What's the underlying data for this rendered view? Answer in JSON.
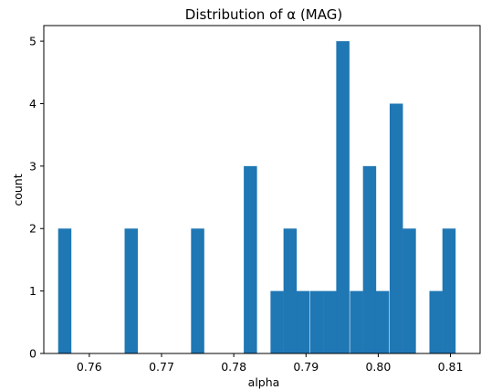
{
  "chart_data": {
    "type": "bar",
    "title": "Distribution of α (MAG)",
    "xlabel": "alpha",
    "ylabel": "count",
    "xlim": [
      0.7537,
      0.8141
    ],
    "ylim": [
      0,
      5.25
    ],
    "xticks": [
      "0.76",
      "0.77",
      "0.78",
      "0.79",
      "0.80",
      "0.81"
    ],
    "yticks": [
      "0",
      "1",
      "2",
      "3",
      "4",
      "5"
    ],
    "bin_width": 0.00183,
    "bins": [
      {
        "x": 0.7566,
        "count": 2
      },
      {
        "x": 0.7658,
        "count": 2
      },
      {
        "x": 0.775,
        "count": 2
      },
      {
        "x": 0.7823,
        "count": 3
      },
      {
        "x": 0.786,
        "count": 1
      },
      {
        "x": 0.7878,
        "count": 2
      },
      {
        "x": 0.7896,
        "count": 1
      },
      {
        "x": 0.7915,
        "count": 1
      },
      {
        "x": 0.7933,
        "count": 1
      },
      {
        "x": 0.7951,
        "count": 5
      },
      {
        "x": 0.797,
        "count": 1
      },
      {
        "x": 0.7988,
        "count": 3
      },
      {
        "x": 0.8006,
        "count": 1
      },
      {
        "x": 0.8025,
        "count": 4
      },
      {
        "x": 0.8043,
        "count": 2
      },
      {
        "x": 0.808,
        "count": 1
      },
      {
        "x": 0.8098,
        "count": 2
      }
    ],
    "grid": false,
    "bar_color": "#1f77b4"
  }
}
